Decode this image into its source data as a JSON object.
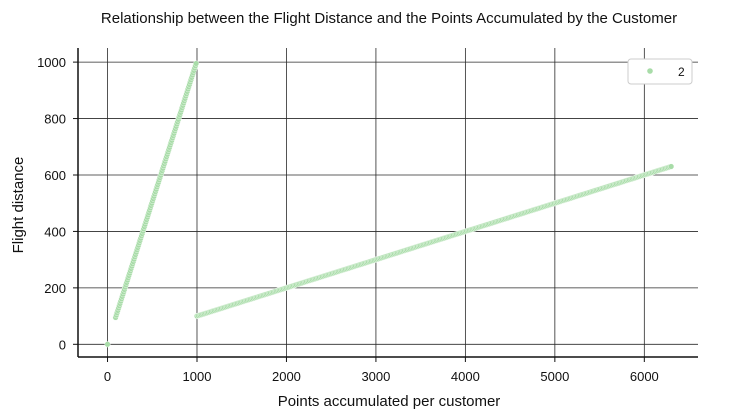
{
  "chart_data": {
    "type": "scatter",
    "title": "Relationship between the Flight Distance and the Points Accumulated by the Customer",
    "xlabel": "Points accumulated per customer",
    "ylabel": "Flight distance",
    "xlim": [
      -330,
      6600
    ],
    "ylim": [
      -45,
      1050
    ],
    "xticks": [
      0,
      1000,
      2000,
      3000,
      4000,
      5000,
      6000
    ],
    "yticks": [
      0,
      200,
      400,
      600,
      800,
      1000
    ],
    "grid": true,
    "legend": {
      "position": "top-right",
      "entries": [
        "2"
      ]
    },
    "marker_color": "#a8dca8",
    "series": [
      {
        "name": "2",
        "segments": [
          {
            "x_start": 0,
            "y_start": 0,
            "x_end": 0,
            "y_end": 0,
            "points": 1
          },
          {
            "x_start": 90,
            "y_start": 95,
            "x_end": 990,
            "y_end": 995,
            "points": 110
          },
          {
            "x_start": 1000,
            "y_start": 100,
            "x_end": 6300,
            "y_end": 630,
            "points": 330
          }
        ]
      }
    ]
  }
}
